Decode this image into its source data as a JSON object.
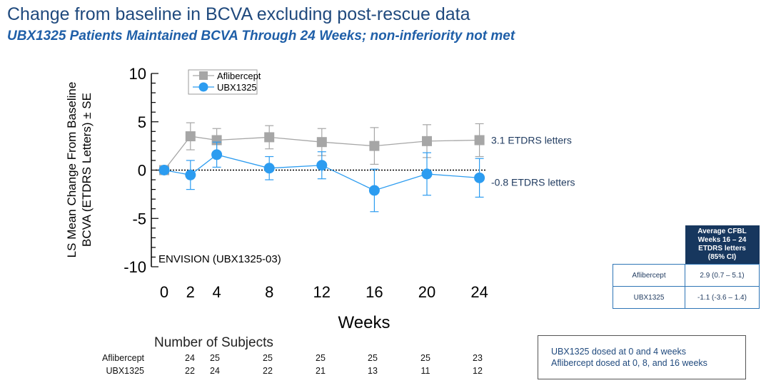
{
  "title": "Change from baseline in BCVA excluding post-rescue data",
  "subtitle": "UBX1325 Patients Maintained BCVA Through 24 Weeks; non-inferiority not met",
  "chart_data": {
    "type": "line",
    "ylabel_line1": "LS Mean Change From Baseline",
    "ylabel_line2": "BCVA (ETDRS Letters) ± SE",
    "xlabel": "Weeks",
    "ylim": [
      -10,
      10
    ],
    "yticks": [
      10,
      5,
      0,
      -5,
      -10
    ],
    "x": [
      0,
      2,
      4,
      8,
      12,
      16,
      20,
      24
    ],
    "xticks": [
      "0",
      "2",
      "4",
      "8",
      "12",
      "16",
      "20",
      "24"
    ],
    "study_label": "ENVISION (UBX1325-03)",
    "series": [
      {
        "name": "Aflibercept",
        "marker": "square",
        "color": "#a6a6a6",
        "values": [
          0,
          3.5,
          3.1,
          3.4,
          2.9,
          2.5,
          3.0,
          3.1
        ],
        "se": [
          0,
          1.4,
          1.2,
          1.2,
          1.4,
          1.9,
          1.7,
          1.7
        ],
        "end_label": "3.1 ETDRS letters"
      },
      {
        "name": "UBX1325",
        "marker": "circle",
        "color": "#2c9cf0",
        "values": [
          0,
          -0.5,
          1.6,
          0.2,
          0.5,
          -2.1,
          -0.4,
          -0.8
        ],
        "se": [
          0,
          1.5,
          1.3,
          1.2,
          1.4,
          2.2,
          2.2,
          2.0
        ],
        "end_label": "-0.8 ETDRS letters"
      }
    ]
  },
  "subjects": {
    "title": "Number of Subjects",
    "rows": [
      {
        "label": "Aflibercept",
        "values": [
          "24",
          "25",
          "25",
          "25",
          "25",
          "25",
          "23"
        ]
      },
      {
        "label": "UBX1325",
        "values": [
          "22",
          "24",
          "22",
          "21",
          "13",
          "11",
          "12"
        ]
      }
    ]
  },
  "cfbl_table": {
    "header": [
      "Average CFBL",
      "Weeks 16 – 24",
      "ETDRS letters",
      "(85% CI)"
    ],
    "rows": [
      {
        "label": "Aflibercept",
        "value": "2.9 (0.7 – 5.1)"
      },
      {
        "label": "UBX1325",
        "value": "-1.1 (-3.6 – 1.4)"
      }
    ]
  },
  "note": {
    "line1": "UBX1325 dosed at 0 and 4 weeks",
    "line2": "Aflibercept dosed at 0, 8, and 16 weeks"
  }
}
